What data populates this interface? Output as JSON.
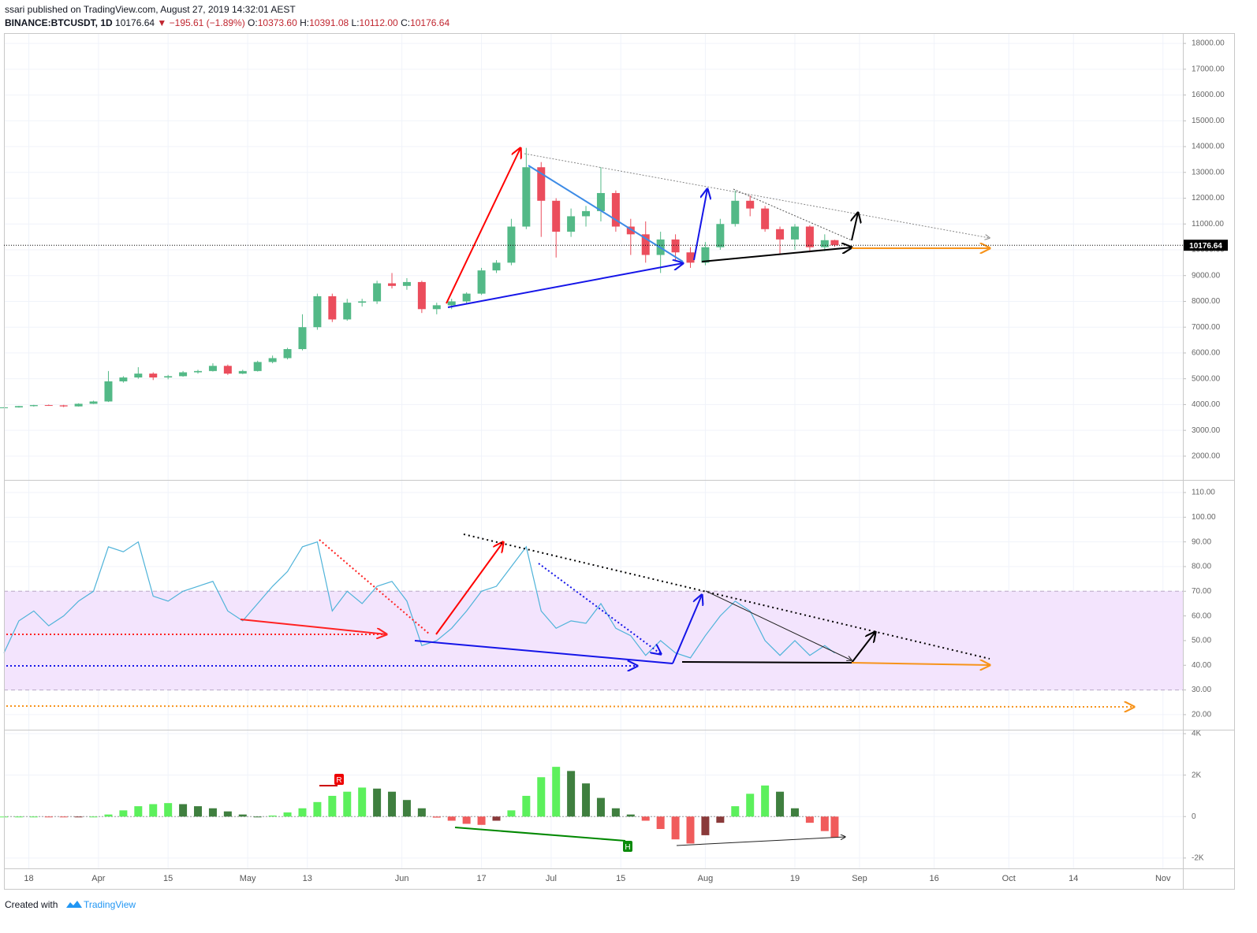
{
  "header": {
    "publisher": "ssari published on TradingView.com, August 27, 2019 14:32:01 AEST",
    "symbol": "BINANCE:BTCUSDT, 1D",
    "last": "10176.64",
    "change": "▼ −195.61 (−1.89%)",
    "ohlc": [
      {
        "label": "O:",
        "value": "10373.60"
      },
      {
        "label": "H:",
        "value": "10391.08"
      },
      {
        "label": "L:",
        "value": "10112.00"
      },
      {
        "label": "C:",
        "value": "10176.64"
      }
    ]
  },
  "footer": {
    "text": "Created with",
    "brand": "TradingView"
  },
  "annotations": {
    "r": "R",
    "h": "H"
  },
  "chart_data": [
    {
      "type": "candlestick",
      "up_color": "#53b987",
      "down_color": "#eb4d5c",
      "grid": true,
      "x": [
        "Mar 13",
        "Mar 16",
        "Mar 19",
        "Mar 22",
        "Mar 25",
        "Mar 28",
        "Mar 31",
        "Apr 3",
        "Apr 6",
        "Apr 9",
        "Apr 12",
        "Apr 15",
        "Apr 18",
        "Apr 21",
        "Apr 24",
        "Apr 27",
        "Apr 30",
        "May 3",
        "May 6",
        "May 9",
        "May 12",
        "May 15",
        "May 18",
        "May 21",
        "May 24",
        "May 27",
        "May 30",
        "Jun 2",
        "Jun 5",
        "Jun 8",
        "Jun 11",
        "Jun 14",
        "Jun 17",
        "Jun 20",
        "Jun 23",
        "Jun 26",
        "Jun 29",
        "Jul 2",
        "Jul 5",
        "Jul 8",
        "Jul 11",
        "Jul 14",
        "Jul 17",
        "Jul 20",
        "Jul 23",
        "Jul 26",
        "Jul 29",
        "Aug 1",
        "Aug 4",
        "Aug 7",
        "Aug 10",
        "Aug 13",
        "Aug 16",
        "Aug 19",
        "Aug 22",
        "Aug 25",
        "Aug 27"
      ],
      "open": [
        3870,
        3890,
        3940,
        3980,
        3970,
        3930,
        4030,
        4120,
        4900,
        5050,
        5200,
        5050,
        5100,
        5250,
        5300,
        5500,
        5200,
        5300,
        5650,
        5800,
        6150,
        7000,
        8200,
        7300,
        7950,
        8000,
        8700,
        8600,
        8750,
        7700,
        7850,
        8000,
        8300,
        9200,
        9500,
        10900,
        13200,
        11900,
        10700,
        11300,
        11500,
        12200,
        10900,
        10600,
        9800,
        10400,
        9900,
        9500,
        10100,
        11000,
        11900,
        11600,
        10800,
        10400,
        10900,
        10100,
        10373.6
      ],
      "high": [
        3900,
        3950,
        3990,
        4000,
        3990,
        4050,
        4150,
        5300,
        5100,
        5450,
        5250,
        5150,
        5300,
        5350,
        5600,
        5550,
        5350,
        5700,
        5900,
        6200,
        7500,
        8300,
        8300,
        8100,
        8100,
        8800,
        9100,
        8900,
        8800,
        7950,
        8100,
        8350,
        9300,
        9600,
        11200,
        13950,
        13400,
        12000,
        11600,
        11700,
        13200,
        12300,
        11200,
        11100,
        10700,
        10600,
        10100,
        10300,
        11200,
        12300,
        12100,
        11700,
        10900,
        11000,
        10950,
        10600,
        10391.08
      ],
      "low": [
        3860,
        3880,
        3920,
        3950,
        3900,
        3920,
        4020,
        4100,
        4850,
        5000,
        4950,
        4980,
        5080,
        5200,
        5280,
        5150,
        5180,
        5280,
        5600,
        5750,
        6100,
        6900,
        7200,
        7250,
        7800,
        7900,
        8500,
        8450,
        7550,
        7500,
        7700,
        7900,
        8250,
        9100,
        9400,
        10800,
        10500,
        9700,
        10500,
        10900,
        11100,
        10700,
        9800,
        9500,
        9100,
        9600,
        9300,
        9400,
        10000,
        10900,
        11300,
        10700,
        9800,
        10000,
        9900,
        9950,
        10112.0
      ],
      "close": [
        3890,
        3940,
        3980,
        3970,
        3930,
        4030,
        4120,
        4900,
        5050,
        5200,
        5050,
        5100,
        5250,
        5300,
        5500,
        5200,
        5300,
        5650,
        5800,
        6150,
        7000,
        8200,
        7300,
        7950,
        8000,
        8700,
        8600,
        8750,
        7700,
        7850,
        8000,
        8300,
        9200,
        9500,
        10900,
        13200,
        11900,
        10700,
        11300,
        11500,
        12200,
        10900,
        10600,
        9800,
        10400,
        9900,
        9500,
        10100,
        11000,
        11900,
        11600,
        10800,
        10400,
        10900,
        10100,
        10372,
        10176.64
      ],
      "xlim": [
        "Mar 13",
        "Nov 5"
      ],
      "xticks": [
        {
          "value": "Mar 18",
          "label": "18"
        },
        {
          "value": "Apr 1",
          "label": "Apr"
        },
        {
          "value": "Apr 15",
          "label": "15"
        },
        {
          "value": "May 1",
          "label": "May"
        },
        {
          "value": "May 13",
          "label": "13"
        },
        {
          "value": "Jun 1",
          "label": "Jun"
        },
        {
          "value": "Jun 17",
          "label": "17"
        },
        {
          "value": "Jul 1",
          "label": "Jul"
        },
        {
          "value": "Jul 15",
          "label": "15"
        },
        {
          "value": "Aug 1",
          "label": "Aug"
        },
        {
          "value": "Aug 19",
          "label": "19"
        },
        {
          "value": "Sep 1",
          "label": "Sep"
        },
        {
          "value": "Sep 16",
          "label": "16"
        },
        {
          "value": "Oct 1",
          "label": "Oct"
        },
        {
          "value": "Oct 14",
          "label": "14"
        },
        {
          "value": "Nov 1",
          "label": "Nov"
        }
      ],
      "ylim": [
        1080,
        18400
      ],
      "yticks": [
        {
          "value": 2000,
          "label": "2000.00"
        },
        {
          "value": 3000,
          "label": "3000.00"
        },
        {
          "value": 4000,
          "label": "4000.00"
        },
        {
          "value": 5000,
          "label": "5000.00"
        },
        {
          "value": 6000,
          "label": "6000.00"
        },
        {
          "value": 7000,
          "label": "7000.00"
        },
        {
          "value": 8000,
          "label": "8000.00"
        },
        {
          "value": 9000,
          "label": "9000.00"
        },
        {
          "value": 10000,
          "label": "10000.00"
        },
        {
          "value": 11000,
          "label": "11000.00"
        },
        {
          "value": 12000,
          "label": "12000.00"
        },
        {
          "value": 13000,
          "label": "13000.00"
        },
        {
          "value": 14000,
          "label": "14000.00"
        },
        {
          "value": 15000,
          "label": "15000.00"
        },
        {
          "value": 16000,
          "label": "16000.00"
        },
        {
          "value": 17000,
          "label": "17000.00"
        },
        {
          "value": 18000,
          "label": "18000.00"
        }
      ]
    },
    {
      "type": "line",
      "color": "#4fb3d9",
      "band": [
        30,
        70
      ],
      "band_color": "#f3e4fd",
      "x": [
        "Mar 13",
        "Mar 16",
        "Mar 19",
        "Mar 22",
        "Mar 25",
        "Mar 28",
        "Mar 31",
        "Apr 3",
        "Apr 6",
        "Apr 9",
        "Apr 12",
        "Apr 15",
        "Apr 18",
        "Apr 21",
        "Apr 24",
        "Apr 27",
        "Apr 30",
        "May 3",
        "May 6",
        "May 9",
        "May 12",
        "May 15",
        "May 18",
        "May 21",
        "May 24",
        "May 27",
        "May 30",
        "Jun 2",
        "Jun 5",
        "Jun 8",
        "Jun 11",
        "Jun 14",
        "Jun 17",
        "Jun 20",
        "Jun 23",
        "Jun 26",
        "Jun 29",
        "Jul 2",
        "Jul 5",
        "Jul 8",
        "Jul 11",
        "Jul 14",
        "Jul 17",
        "Jul 20",
        "Jul 23",
        "Jul 26",
        "Jul 29",
        "Aug 1",
        "Aug 4",
        "Aug 7",
        "Aug 10",
        "Aug 13",
        "Aug 16",
        "Aug 19",
        "Aug 22",
        "Aug 25",
        "Aug 27"
      ],
      "values": [
        45,
        58,
        62,
        56,
        60,
        66,
        70,
        88,
        86,
        90,
        68,
        66,
        70,
        72,
        74,
        62,
        58,
        65,
        72,
        78,
        88,
        90,
        62,
        70,
        65,
        72,
        74,
        66,
        48,
        50,
        55,
        62,
        70,
        72,
        80,
        88,
        62,
        55,
        58,
        57,
        65,
        55,
        52,
        44,
        50,
        45,
        43,
        52,
        60,
        66,
        62,
        50,
        44,
        50,
        44,
        48,
        45
      ],
      "ylim": [
        13.9,
        114.8
      ],
      "yticks": [
        {
          "value": 20,
          "label": "20.00"
        },
        {
          "value": 30,
          "label": "30.00"
        },
        {
          "value": 40,
          "label": "40.00"
        },
        {
          "value": 50,
          "label": "50.00"
        },
        {
          "value": 60,
          "label": "60.00"
        },
        {
          "value": 70,
          "label": "70.00"
        },
        {
          "value": 80,
          "label": "80.00"
        },
        {
          "value": 90,
          "label": "90.00"
        },
        {
          "value": 100,
          "label": "100.00"
        },
        {
          "value": 110,
          "label": "110.00"
        }
      ]
    },
    {
      "type": "histogram",
      "colors": {
        "pos_up": "#5cf05c",
        "pos_down": "#3f7f3f",
        "neg_down": "#f05c5c",
        "neg_up": "#8a3a3a"
      },
      "x": [
        "Mar 13",
        "Mar 16",
        "Mar 19",
        "Mar 22",
        "Mar 25",
        "Mar 28",
        "Mar 31",
        "Apr 3",
        "Apr 6",
        "Apr 9",
        "Apr 12",
        "Apr 15",
        "Apr 18",
        "Apr 21",
        "Apr 24",
        "Apr 27",
        "Apr 30",
        "May 3",
        "May 6",
        "May 9",
        "May 12",
        "May 15",
        "May 18",
        "May 21",
        "May 24",
        "May 27",
        "May 30",
        "Jun 2",
        "Jun 5",
        "Jun 8",
        "Jun 11",
        "Jun 14",
        "Jun 17",
        "Jun 20",
        "Jun 23",
        "Jun 26",
        "Jun 29",
        "Jul 2",
        "Jul 5",
        "Jul 8",
        "Jul 11",
        "Jul 14",
        "Jul 17",
        "Jul 20",
        "Jul 23",
        "Jul 26",
        "Jul 29",
        "Aug 1",
        "Aug 4",
        "Aug 7",
        "Aug 10",
        "Aug 13",
        "Aug 16",
        "Aug 19",
        "Aug 22",
        "Aug 25",
        "Aug 27"
      ],
      "values": [
        0,
        0,
        0,
        -20,
        -30,
        -10,
        0,
        100,
        300,
        500,
        600,
        650,
        600,
        500,
        400,
        250,
        100,
        0,
        50,
        200,
        400,
        700,
        1000,
        1200,
        1400,
        1350,
        1200,
        800,
        400,
        -50,
        -200,
        -350,
        -400,
        -200,
        300,
        1000,
        1900,
        2400,
        2200,
        1600,
        900,
        400,
        100,
        -200,
        -600,
        -1100,
        -1300,
        -900,
        -300,
        500,
        1100,
        1500,
        1200,
        400,
        -300,
        -700,
        -1000
      ],
      "ylim": [
        -2500,
        4154
      ],
      "yticks": [
        {
          "value": -2000,
          "label": "-2K"
        },
        0,
        {
          "value": 2000,
          "label": "2K"
        },
        {
          "value": 4000,
          "label": "4K"
        }
      ]
    }
  ]
}
